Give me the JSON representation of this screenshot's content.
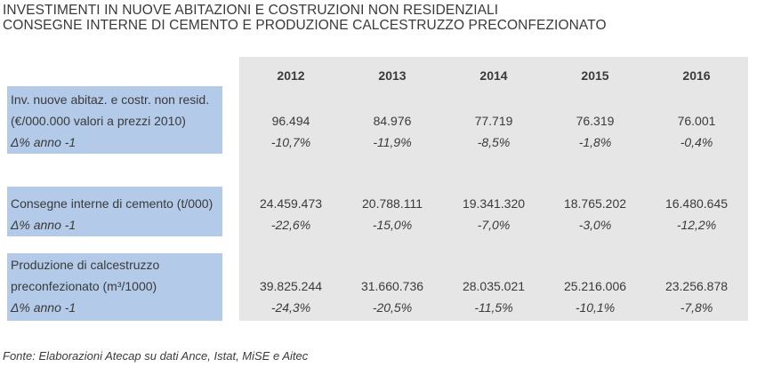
{
  "title_line1": "INVESTIMENTI IN NUOVE ABITAZIONI E COSTRUZIONI NON RESIDENZIALI",
  "title_line2": "CONSEGNE INTERNE DI CEMENTO E PRODUZIONE CALCESTRUZZO PRECONFEZIONATO",
  "years": [
    "2012",
    "2013",
    "2014",
    "2015",
    "2016"
  ],
  "rows": [
    {
      "label_lines": [
        "Inv. nuove abitaz. e costr. non resid.",
        "(€/000.000 valori a prezzi 2010)"
      ],
      "delta_label": "Δ% anno -1",
      "values": [
        "96.494",
        "84.976",
        "77.719",
        "76.319",
        "76.001"
      ],
      "deltas": [
        "-10,7%",
        "-11,9%",
        "-8,5%",
        "-1,8%",
        "-0,4%"
      ]
    },
    {
      "label_lines": [
        "Consegne interne di cemento (t/000)"
      ],
      "delta_label": "Δ% anno -1",
      "values": [
        "24.459.473",
        "20.788.111",
        "19.341.320",
        "18.765.202",
        "16.480.645"
      ],
      "deltas": [
        "-22,6%",
        "-15,0%",
        "-7,0%",
        "-3,0%",
        "-12,2%"
      ]
    },
    {
      "label_lines": [
        "Produzione di calcestruzzo",
        "preconfezionato (m³/1000)"
      ],
      "delta_label": "Δ% anno -1",
      "values": [
        "39.825.244",
        "31.660.736",
        "28.035.021",
        "25.216.006",
        "23.256.878"
      ],
      "deltas": [
        "-24,3%",
        "-20,5%",
        "-11,5%",
        "-10,1%",
        "-7,8%"
      ]
    }
  ],
  "source": "Fonte: Elaborazioni Atecap su dati Ance, Istat, MiSE e Aitec",
  "colors": {
    "row_label_bg": "#b3cbe9",
    "column_bg": "#e6e6e6",
    "text": "#3a3a3a"
  }
}
